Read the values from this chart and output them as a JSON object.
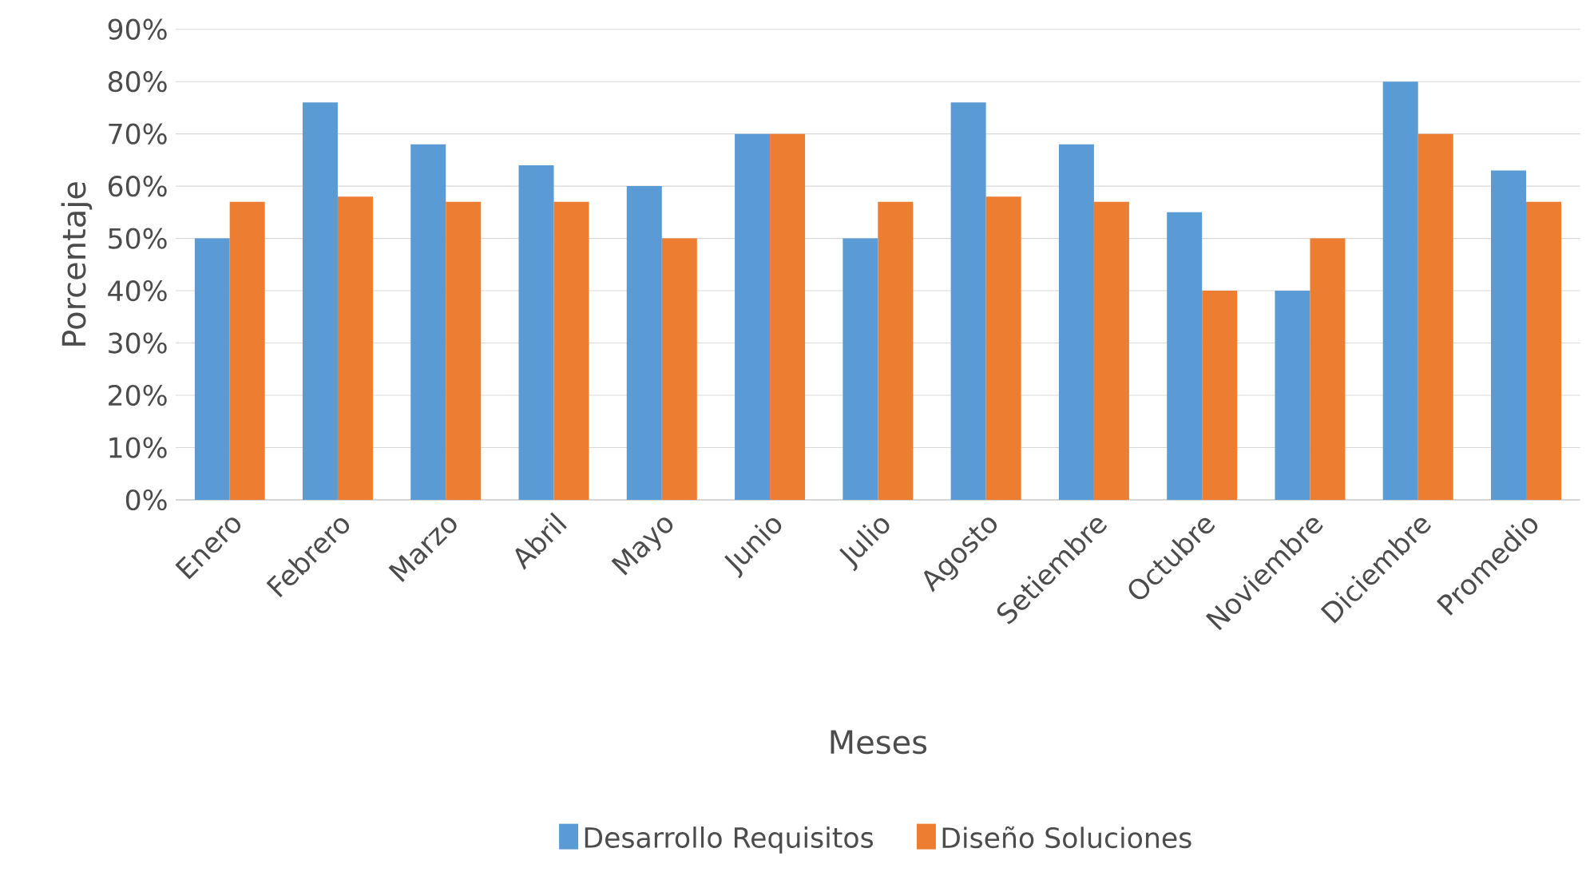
{
  "chart_data": {
    "type": "bar",
    "xlabel": "Meses",
    "ylabel": "Porcentaje",
    "categories": [
      "Enero",
      "Febrero",
      "Marzo",
      "Abril",
      "Mayo",
      "Junio",
      "Julio",
      "Agosto",
      "Setiembre",
      "Octubre",
      "Noviembre",
      "Diciembre",
      "Promedio"
    ],
    "series": [
      {
        "name": "Desarrollo Requisitos",
        "color": "#5b9bd5",
        "values": [
          50,
          76,
          68,
          64,
          60,
          70,
          50,
          76,
          68,
          55,
          40,
          80,
          63
        ]
      },
      {
        "name": "Diseño Soluciones",
        "color": "#ed7d31",
        "values": [
          57,
          58,
          57,
          57,
          50,
          70,
          57,
          58,
          57,
          40,
          50,
          70,
          57
        ]
      }
    ],
    "ylim": [
      0,
      90
    ],
    "yticks": [
      {
        "value": 0,
        "label": "0%"
      },
      {
        "value": 10,
        "label": "10%"
      },
      {
        "value": 20,
        "label": "20%"
      },
      {
        "value": 30,
        "label": "30%"
      },
      {
        "value": 40,
        "label": "40%"
      },
      {
        "value": 50,
        "label": "50%"
      },
      {
        "value": 60,
        "label": "60%"
      },
      {
        "value": 70,
        "label": "70%"
      },
      {
        "value": 80,
        "label": "80%"
      },
      {
        "value": 90,
        "label": "90%"
      }
    ],
    "grid": "y",
    "legend": "bottom"
  }
}
